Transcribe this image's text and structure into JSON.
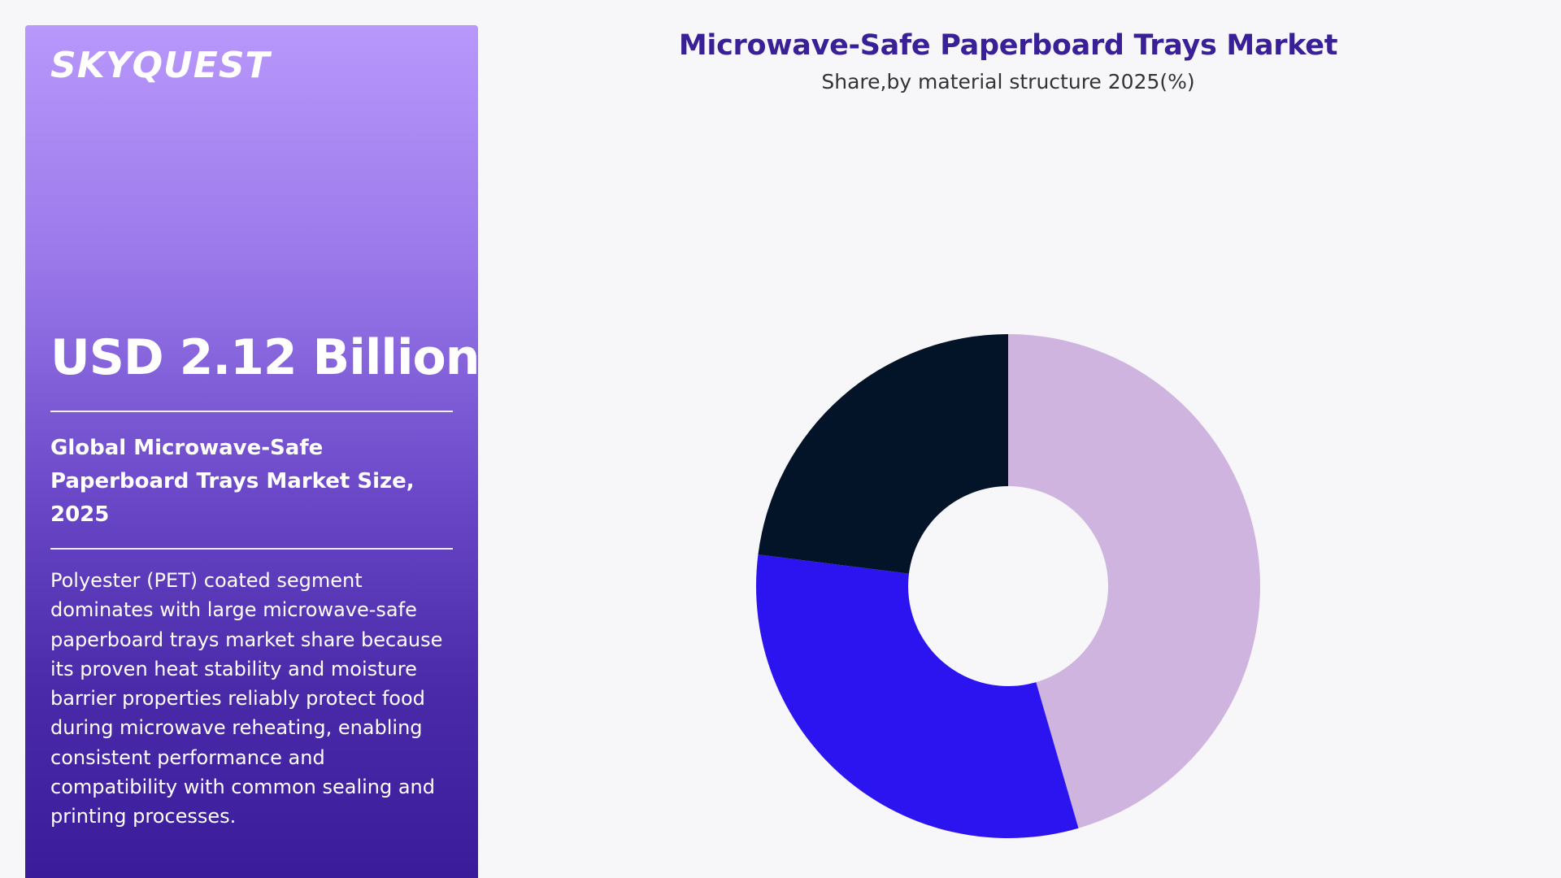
{
  "sidebar": {
    "logo": "SKYQUEST",
    "value": "USD 2.12 Billion",
    "market_title": "Global Microwave-Safe Paperboard Trays Market Size, 2025",
    "description": "Polyester (PET) coated segment dominates with large microwave-safe paperboard trays market share because its proven heat stability and moisture barrier properties reliably protect food during microwave reheating, enabling consistent performance and compatibility with common sealing and printing processes."
  },
  "chart_data": {
    "type": "pie",
    "variant": "donut",
    "title": "Microwave-Safe Paperboard Trays Market",
    "subtitle": "Share,by material structure 2025(%)",
    "values": [
      45.5,
      31.5,
      23.0
    ],
    "colors": [
      "#cfb4df",
      "#2b14f0",
      "#031328"
    ],
    "legend": "none",
    "data_labels": "none"
  }
}
